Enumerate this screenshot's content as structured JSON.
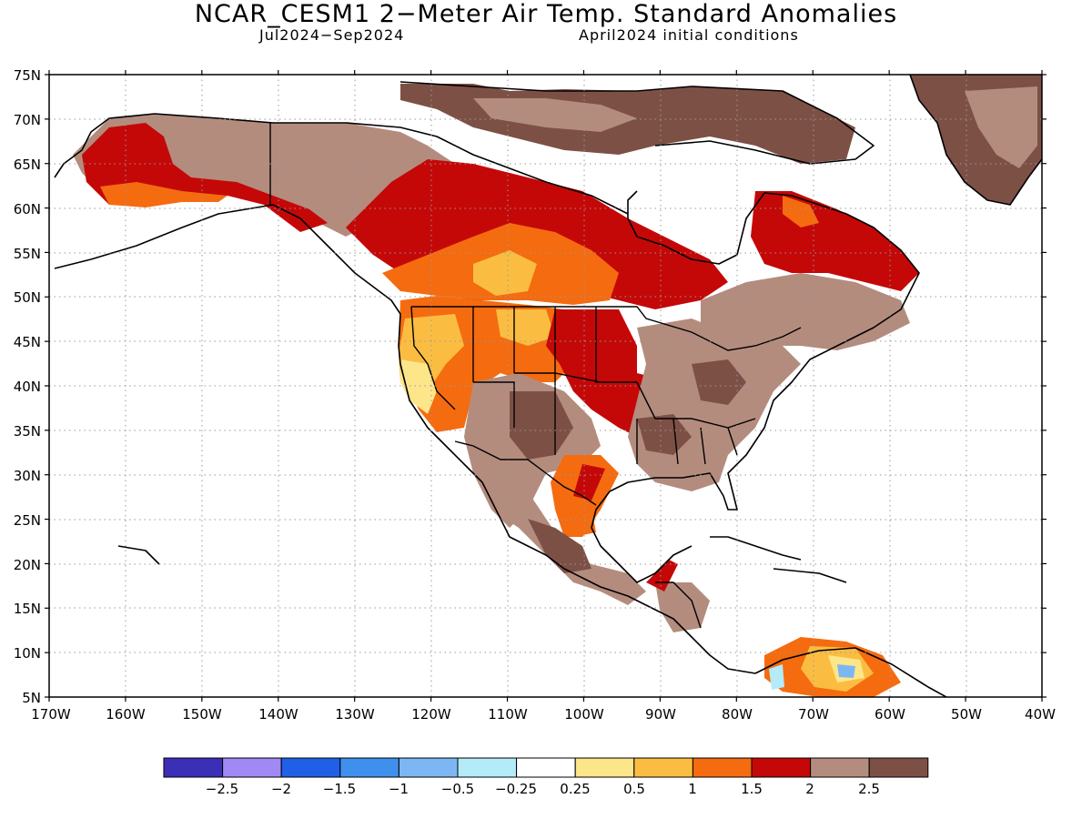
{
  "title": "NCAR_CESM1 2−Meter Air Temp. Standard Anomalies",
  "subtitle_left": "Jul2024−Sep2024",
  "subtitle_right": "April2024 initial conditions",
  "map": {
    "lon_min": -170,
    "lon_max": -40,
    "lat_min": 5,
    "lat_max": 75,
    "lat_labels": [
      "75N",
      "70N",
      "65N",
      "60N",
      "55N",
      "50N",
      "45N",
      "40N",
      "35N",
      "30N",
      "25N",
      "20N",
      "15N",
      "10N",
      "5N"
    ],
    "lon_labels": [
      "170W",
      "160W",
      "150W",
      "140W",
      "130W",
      "120W",
      "110W",
      "100W",
      "90W",
      "80W",
      "70W",
      "60W",
      "50W",
      "40W"
    ],
    "grid": "dotted"
  },
  "colorbar": {
    "labels": [
      "−2.5",
      "−2",
      "−1.5",
      "−1",
      "−0.5",
      "−0.25",
      "0.25",
      "0.5",
      "1",
      "1.5",
      "2",
      "2.5"
    ],
    "colors": [
      "#3b2fb8",
      "#a089f5",
      "#2060e6",
      "#3f90ec",
      "#7cb7f3",
      "#b3ebf8",
      "#ffffff",
      "#fde58a",
      "#fbbd41",
      "#f56b10",
      "#c40808",
      "#b48c7e",
      "#7d5046"
    ]
  }
}
